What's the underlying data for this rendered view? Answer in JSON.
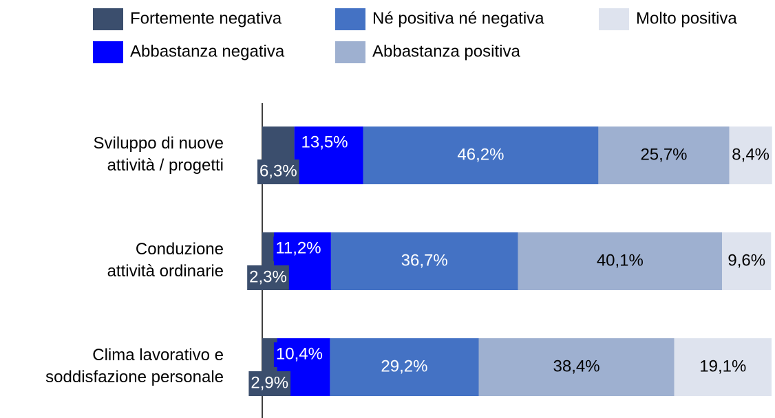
{
  "chart_data": {
    "type": "stacked_barh",
    "categories": [
      "Sviluppo di nuove\nattività / progetti",
      "Conduzione\nattività ordinarie",
      "Clima lavorativo e\nsoddisfazione personale"
    ],
    "series": [
      {
        "name": "Fortemente negativa",
        "color": "#3b4e6d",
        "text_color": "#ffffff",
        "values": [
          6.3,
          2.3,
          2.9
        ],
        "value_labels": [
          "6,3%",
          "2,3%",
          "2,9%"
        ]
      },
      {
        "name": "Abbastanza negativa",
        "color": "#0000ff",
        "text_color": "#ffffff",
        "values": [
          13.5,
          11.2,
          10.4
        ],
        "value_labels": [
          "13,5%",
          "11,2%",
          "10,4%"
        ]
      },
      {
        "name": "Né positiva né negativa",
        "color": "#4472c4",
        "text_color": "#ffffff",
        "values": [
          46.2,
          36.7,
          29.2
        ],
        "value_labels": [
          "46,2%",
          "36,7%",
          "29,2%"
        ]
      },
      {
        "name": "Abbastanza positiva",
        "color": "#9eb0d0",
        "text_color": "#000000",
        "values": [
          25.7,
          40.1,
          38.4
        ],
        "value_labels": [
          "25,7%",
          "40,1%",
          "38,4%"
        ]
      },
      {
        "name": "Molto positiva",
        "color": "#dee3ee",
        "text_color": "#000000",
        "values": [
          8.4,
          9.6,
          19.1
        ],
        "value_labels": [
          "8,4%",
          "9,6%",
          "19,1%"
        ]
      }
    ],
    "xlim": [
      0,
      100
    ],
    "legend": "top"
  }
}
